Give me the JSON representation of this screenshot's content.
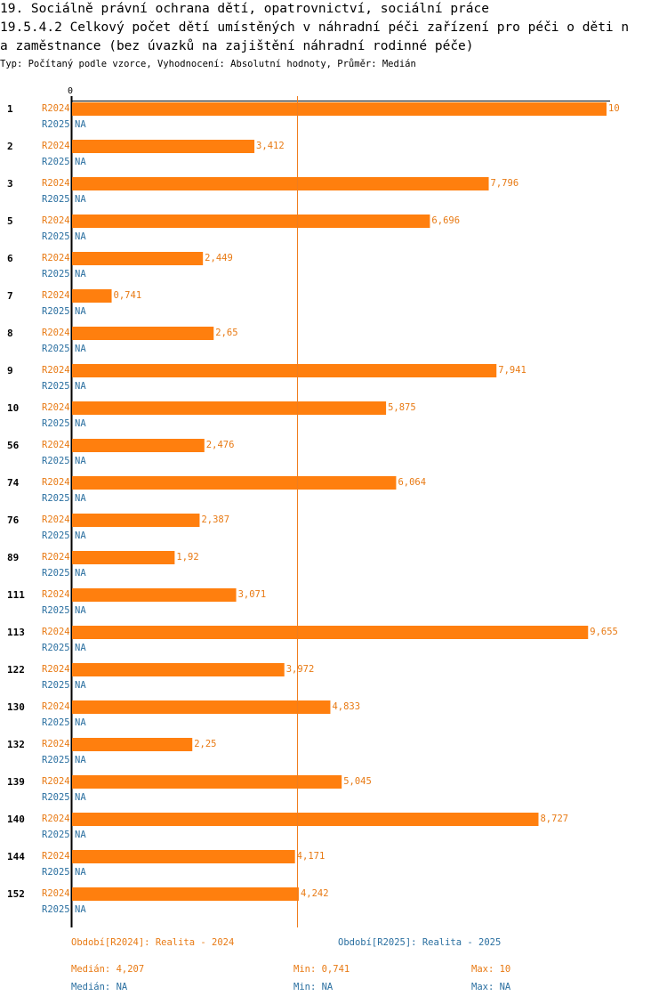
{
  "title_line1": "19. Sociálně právní ochrana dětí, opatrovnictví, sociální práce",
  "title_line2": "19.5.4.2 Celkový počet dětí umístěných v náhradní péči zařízení pro péči o děti n",
  "title_line3": "a zaměstnance (bez úvazků na zajištění náhradní rodinné péče)",
  "subtitle": "Typ: Počítaný podle vzorce, Vyhodnocení: Absolutní hodnoty, Průměr: Medián",
  "colors": {
    "r2024": "#ff7f0e",
    "r2024_text": "#e87a14",
    "r2025_text": "#2a6fa0",
    "median_line": "#f07d1e"
  },
  "chart_data": {
    "type": "bar",
    "orientation": "horizontal",
    "axis_zero_label": "0",
    "xlim": [
      0,
      10
    ],
    "median": 4.207,
    "categories": [
      "1",
      "2",
      "3",
      "5",
      "6",
      "7",
      "8",
      "9",
      "10",
      "56",
      "74",
      "76",
      "89",
      "111",
      "113",
      "122",
      "130",
      "132",
      "139",
      "140",
      "144",
      "152"
    ],
    "series": [
      {
        "name": "R2024",
        "values": [
          10,
          3.412,
          7.796,
          6.696,
          2.449,
          0.741,
          2.65,
          7.941,
          5.875,
          2.476,
          6.064,
          2.387,
          1.92,
          3.071,
          9.655,
          3.972,
          4.833,
          2.25,
          5.045,
          8.727,
          4.171,
          4.242
        ],
        "value_labels": [
          "10",
          "3,412",
          "7,796",
          "6,696",
          "2,449",
          "0,741",
          "2,65",
          "7,941",
          "5,875",
          "2,476",
          "6,064",
          "2,387",
          "1,92",
          "3,071",
          "9,655",
          "3,972",
          "4,833",
          "2,25",
          "5,045",
          "8,727",
          "4,171",
          "4,242"
        ]
      },
      {
        "name": "R2025",
        "values": [
          null,
          null,
          null,
          null,
          null,
          null,
          null,
          null,
          null,
          null,
          null,
          null,
          null,
          null,
          null,
          null,
          null,
          null,
          null,
          null,
          null,
          null
        ],
        "value_labels": [
          "NA",
          "NA",
          "NA",
          "NA",
          "NA",
          "NA",
          "NA",
          "NA",
          "NA",
          "NA",
          "NA",
          "NA",
          "NA",
          "NA",
          "NA",
          "NA",
          "NA",
          "NA",
          "NA",
          "NA",
          "NA",
          "NA"
        ]
      }
    ]
  },
  "legend": {
    "r2024": "Období[R2024]: Realita - 2024",
    "r2025": "Období[R2025]: Realita - 2025"
  },
  "stats": {
    "r2024": {
      "median": "Medián: 4,207",
      "min": "Min: 0,741",
      "max": "Max: 10"
    },
    "r2025": {
      "median": "Medián: NA",
      "min": "Min: NA",
      "max": "Max: NA"
    }
  }
}
